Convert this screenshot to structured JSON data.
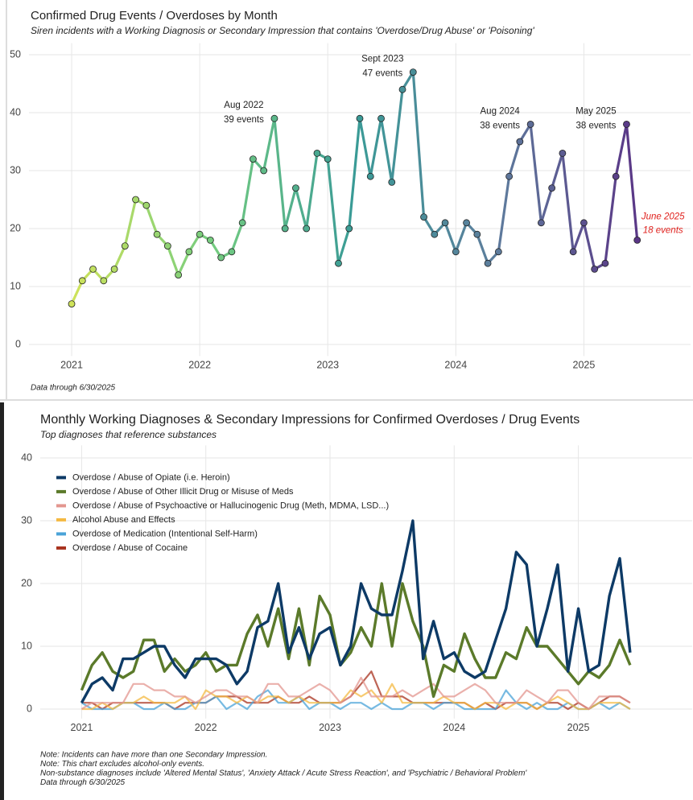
{
  "chart_data": [
    {
      "type": "line",
      "title": "Confirmed Drug Events / Overdoses by Month",
      "subtitle": "Siren incidents with a Working Diagnosis or Secondary Impression that contains 'Overdose/Drug Abuse' or 'Poisoning'",
      "x": [
        "2021-01",
        "2021-02",
        "2021-03",
        "2021-04",
        "2021-05",
        "2021-06",
        "2021-07",
        "2021-08",
        "2021-09",
        "2021-10",
        "2021-11",
        "2021-12",
        "2022-01",
        "2022-02",
        "2022-03",
        "2022-04",
        "2022-05",
        "2022-06",
        "2022-07",
        "2022-08",
        "2022-09",
        "2022-10",
        "2022-11",
        "2022-12",
        "2023-01",
        "2023-02",
        "2023-03",
        "2023-04",
        "2023-05",
        "2023-06",
        "2023-07",
        "2023-08",
        "2023-09",
        "2023-10",
        "2023-11",
        "2023-12",
        "2024-01",
        "2024-02",
        "2024-03",
        "2024-04",
        "2024-05",
        "2024-06",
        "2024-07",
        "2024-08",
        "2024-09",
        "2024-10",
        "2024-11",
        "2024-12",
        "2025-01",
        "2025-02",
        "2025-03",
        "2025-04",
        "2025-05",
        "2025-06"
      ],
      "values": [
        7,
        11,
        13,
        11,
        13,
        17,
        25,
        24,
        19,
        17,
        12,
        16,
        19,
        18,
        15,
        16,
        21,
        32,
        30,
        39,
        20,
        27,
        20,
        33,
        32,
        14,
        20,
        39,
        29,
        39,
        28,
        44,
        47,
        22,
        19,
        21,
        16,
        21,
        19,
        14,
        16,
        29,
        35,
        38,
        21,
        27,
        33,
        16,
        21,
        13,
        14,
        29,
        38,
        18
      ],
      "color_stops": [
        "#cfe35a",
        "#74cc80",
        "#3a9b96",
        "#5e7d9d",
        "#5a3686"
      ],
      "xlim": [
        "2020-09",
        "2025-11"
      ],
      "xticks": [
        {
          "value": "2021-01",
          "label": "2021"
        },
        {
          "value": "2022-01",
          "label": "2022"
        },
        {
          "value": "2023-01",
          "label": "2023"
        },
        {
          "value": "2024-01",
          "label": "2024"
        },
        {
          "value": "2025-01",
          "label": "2025"
        }
      ],
      "ylim": [
        -2,
        52
      ],
      "yticks": [
        0,
        10,
        20,
        30,
        40,
        50
      ],
      "grid": true,
      "annotations": [
        {
          "x": "2022-08",
          "lines": [
            "Aug 2022",
            "39 events"
          ]
        },
        {
          "x": "2023-09",
          "lines": [
            "Sept 2023",
            "47 events"
          ]
        },
        {
          "x": "2024-08",
          "lines": [
            "Aug 2024",
            "38 events"
          ]
        },
        {
          "x": "2025-05",
          "lines": [
            "May 2025",
            "38 events"
          ]
        },
        {
          "x": "2025-06",
          "lines": [
            "June 2025",
            "18 events"
          ],
          "color": "#e0201c"
        }
      ],
      "notes": [
        "Data through 6/30/2025"
      ]
    },
    {
      "type": "line",
      "title": "Monthly Working Diagnoses & Secondary Impressions for Confirmed Overdoses / Drug Events",
      "subtitle": "Top diagnoses that reference substances",
      "x": [
        "2021-01",
        "2021-02",
        "2021-03",
        "2021-04",
        "2021-05",
        "2021-06",
        "2021-07",
        "2021-08",
        "2021-09",
        "2021-10",
        "2021-11",
        "2021-12",
        "2022-01",
        "2022-02",
        "2022-03",
        "2022-04",
        "2022-05",
        "2022-06",
        "2022-07",
        "2022-08",
        "2022-09",
        "2022-10",
        "2022-11",
        "2022-12",
        "2023-01",
        "2023-02",
        "2023-03",
        "2023-04",
        "2023-05",
        "2023-06",
        "2023-07",
        "2023-08",
        "2023-09",
        "2023-10",
        "2023-11",
        "2023-12",
        "2024-01",
        "2024-02",
        "2024-03",
        "2024-04",
        "2024-05",
        "2024-06",
        "2024-07",
        "2024-08",
        "2024-09",
        "2024-10",
        "2024-11",
        "2024-12",
        "2025-01",
        "2025-02",
        "2025-03",
        "2025-04",
        "2025-05",
        "2025-06"
      ],
      "series": [
        {
          "name": "Overdose / Abuse of Opiate (i.e. Heroin)",
          "color": "#0d3a66",
          "values": [
            1,
            4,
            5,
            3,
            8,
            8,
            9,
            10,
            10,
            7,
            5,
            8,
            8,
            8,
            7,
            4,
            6,
            13,
            14,
            20,
            9,
            13,
            8,
            12,
            13,
            7,
            10,
            20,
            16,
            15,
            15,
            22,
            30,
            8,
            14,
            8,
            9,
            6,
            5,
            6,
            11,
            16,
            25,
            23,
            10,
            16,
            23,
            6,
            16,
            6,
            7,
            18,
            24,
            9
          ]
        },
        {
          "name": "Overdose / Abuse of Other Illicit Drug or Misuse of Meds",
          "color": "#5b7a2a",
          "values": [
            3,
            7,
            9,
            6,
            5,
            6,
            11,
            11,
            6,
            8,
            6,
            7,
            9,
            6,
            7,
            7,
            12,
            15,
            10,
            16,
            8,
            16,
            7,
            18,
            15,
            7,
            9,
            13,
            10,
            20,
            10,
            20,
            14,
            10,
            2,
            7,
            6,
            12,
            8,
            5,
            5,
            9,
            8,
            13,
            10,
            10,
            8,
            6,
            4,
            6,
            5,
            7,
            11,
            7
          ]
        },
        {
          "name": "Overdose / Abuse of Psychoactive or Hallucinogenic Drug (Meth, MDMA, LSD...)",
          "color": "#e3968f",
          "values": [
            0,
            1,
            1,
            1,
            1,
            4,
            4,
            3,
            3,
            2,
            2,
            1,
            2,
            3,
            3,
            2,
            2,
            1,
            4,
            4,
            2,
            2,
            3,
            4,
            3,
            1,
            2,
            5,
            2,
            2,
            2,
            3,
            2,
            3,
            4,
            2,
            2,
            3,
            4,
            3,
            1,
            1,
            1,
            3,
            2,
            1,
            3,
            3,
            1,
            0,
            2,
            2,
            2,
            1
          ]
        },
        {
          "name": "Alcohol Abuse and Effects",
          "color": "#f4b942",
          "values": [
            0,
            0,
            1,
            0,
            1,
            1,
            2,
            1,
            1,
            1,
            2,
            0,
            3,
            2,
            2,
            1,
            2,
            1,
            2,
            2,
            1,
            2,
            1,
            1,
            1,
            1,
            3,
            2,
            3,
            1,
            4,
            1,
            1,
            1,
            1,
            2,
            1,
            1,
            0,
            1,
            1,
            0,
            1,
            1,
            0,
            1,
            2,
            1,
            0,
            0,
            1,
            1,
            1,
            0
          ]
        },
        {
          "name": "Overdose of Medication (Intentional Self-Harm)",
          "color": "#4aa3d8",
          "values": [
            1,
            0,
            0,
            0,
            1,
            1,
            0,
            0,
            1,
            0,
            0,
            1,
            1,
            2,
            0,
            1,
            0,
            2,
            3,
            1,
            1,
            2,
            0,
            1,
            1,
            0,
            1,
            1,
            0,
            1,
            0,
            0,
            1,
            1,
            0,
            1,
            1,
            0,
            0,
            0,
            0,
            3,
            1,
            0,
            1,
            0,
            0,
            1,
            0,
            0,
            1,
            0,
            1,
            0
          ]
        },
        {
          "name": "Overdose / Abuse of Cocaine",
          "color": "#a8321e",
          "values": [
            1,
            1,
            0,
            1,
            1,
            1,
            1,
            1,
            1,
            0,
            1,
            1,
            1,
            2,
            2,
            2,
            1,
            1,
            1,
            2,
            1,
            1,
            2,
            1,
            1,
            1,
            2,
            4,
            6,
            2,
            2,
            2,
            1,
            1,
            1,
            1,
            1,
            1,
            0,
            1,
            0,
            1,
            1,
            1,
            0,
            1,
            1,
            0,
            1,
            0,
            1,
            2,
            2,
            1
          ]
        }
      ],
      "xlim": [
        "2020-09",
        "2025-12"
      ],
      "xticks": [
        {
          "value": "2021-01",
          "label": "2021"
        },
        {
          "value": "2022-01",
          "label": "2022"
        },
        {
          "value": "2023-01",
          "label": "2023"
        },
        {
          "value": "2024-01",
          "label": "2024"
        },
        {
          "value": "2025-01",
          "label": "2025"
        }
      ],
      "ylim": [
        -1.5,
        42
      ],
      "yticks": [
        0,
        10,
        20,
        30,
        40
      ],
      "grid": true,
      "legend": "top-left",
      "notes": [
        "Note: Incidents can have more than one Secondary Impression.",
        "Note: This chart excludes alcohol-only events.",
        "Non-substance diagnoses include 'Altered Mental Status', 'Anxiety Attack / Acute Stress Reaction', and 'Psychiatric / Behavioral Problem'",
        "Data through 6/30/2025"
      ]
    }
  ]
}
